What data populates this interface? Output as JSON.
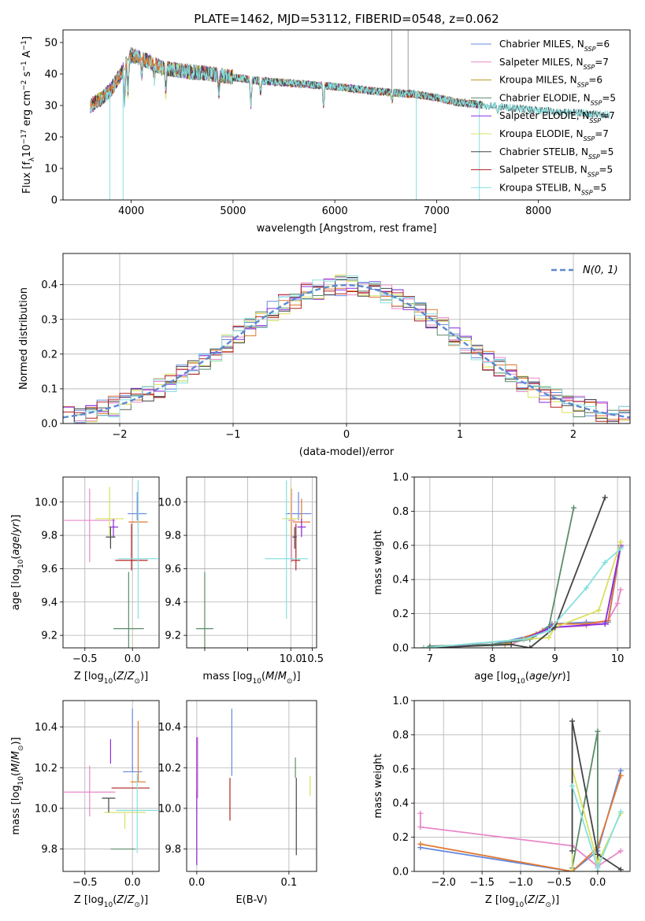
{
  "figure": {
    "title": "PLATE=1462, MJD=53112, FIBERID=0548, z=0.062"
  },
  "palette": [
    "#6688dd",
    "#e888c8",
    "#b89a20",
    "#5b8c6a",
    "#8a2be2",
    "#d8e060",
    "#444444",
    "#b22222",
    "#88e0e0",
    "#e07830"
  ],
  "chart_data": [
    {
      "type": "line",
      "title": "PLATE=1462, MJD=53112, FIBERID=0548, z=0.062",
      "xlabel": "wavelength [Angstrom, rest frame]",
      "ylabel": "Flux [f_λ10^-17 erg cm^-2 s^-1 A^-1]",
      "xlim": [
        3330,
        8900
      ],
      "ylim": [
        0,
        54
      ],
      "xticks": [
        4000,
        5000,
        6000,
        7000,
        8000
      ],
      "yticks": [
        0,
        10,
        20,
        30,
        40,
        50
      ],
      "grid": false,
      "legend_position": "top-right",
      "continuum": {
        "x": [
          3600,
          3700,
          3800,
          3900,
          4000,
          4100,
          4300,
          4500,
          4800,
          5200,
          5600,
          6000,
          6400,
          6800,
          7000,
          7200,
          7500,
          7800,
          8200,
          8700
        ],
        "y": [
          30,
          32,
          35,
          40,
          46,
          45,
          42,
          41,
          40,
          38,
          37,
          36,
          34.5,
          33.5,
          32.5,
          31,
          30,
          29,
          28,
          27
        ]
      },
      "absorption_lines": [
        {
          "x": 3934,
          "depth": 12
        },
        {
          "x": 3968,
          "depth": 10
        },
        {
          "x": 4102,
          "depth": 6
        },
        {
          "x": 4227,
          "depth": 5
        },
        {
          "x": 4340,
          "depth": 8
        },
        {
          "x": 4861,
          "depth": 6
        },
        {
          "x": 5175,
          "depth": 9
        },
        {
          "x": 5270,
          "depth": 4
        },
        {
          "x": 5890,
          "depth": 7
        },
        {
          "x": 6563,
          "depth": 3
        },
        {
          "x": 7600,
          "depth": 3
        }
      ],
      "spikes": [
        {
          "x": 3790,
          "to": 0
        },
        {
          "x": 3920,
          "to": 0
        },
        {
          "x": 6560,
          "to": 54
        },
        {
          "x": 6720,
          "to": 54
        },
        {
          "x": 6800,
          "to": 0
        },
        {
          "x": 7420,
          "to": 0
        }
      ],
      "series": [
        {
          "name": "Chabrier MILES, N",
          "sub": "SSP",
          "suffix": "=6",
          "color": "#6688dd"
        },
        {
          "name": "Salpeter MILES, N",
          "sub": "SSP",
          "suffix": "=7",
          "color": "#e888c8"
        },
        {
          "name": "Kroupa MILES, N",
          "sub": "SSP",
          "suffix": "=6",
          "color": "#b89a20"
        },
        {
          "name": "Chabrier ELODIE, N",
          "sub": "SSP",
          "suffix": "=5",
          "color": "#5b8c6a"
        },
        {
          "name": "Salpeter ELODIE, N",
          "sub": "SSP",
          "suffix": "=7",
          "color": "#8a2be2"
        },
        {
          "name": "Kroupa ELODIE, N",
          "sub": "SSP",
          "suffix": "=7",
          "color": "#d8e060"
        },
        {
          "name": "Chabrier STELIB, N",
          "sub": "SSP",
          "suffix": "=5",
          "color": "#444444"
        },
        {
          "name": "Salpeter STELIB, N",
          "sub": "SSP",
          "suffix": "=5",
          "color": "#b22222"
        },
        {
          "name": "Kroupa STELIB, N",
          "sub": "SSP",
          "suffix": "=5",
          "color": "#88e0e0"
        }
      ]
    },
    {
      "type": "histogram",
      "xlabel": "(data-model)/error",
      "ylabel": "Normed distribution",
      "xlim": [
        -2.5,
        2.5
      ],
      "ylim": [
        0,
        0.49
      ],
      "xticks": [
        -2,
        -1,
        0,
        1,
        2
      ],
      "yticks": [
        0.0,
        0.1,
        0.2,
        0.3,
        0.4
      ],
      "grid": true,
      "legend_position": "top-right",
      "legend": "N(0, 1)",
      "bin_width": 0.1,
      "n_series": 9
    },
    {
      "type": "errorbar",
      "xlabel": "Z [log10(Z/Z⊙)]",
      "ylabel": "age [log10(age/yr)]",
      "xlim": [
        -0.73,
        0.28
      ],
      "ylim": [
        9.125,
        10.15
      ],
      "xticks": [
        -0.5,
        0.0
      ],
      "yticks": [
        9.2,
        9.4,
        9.6,
        9.8,
        10.0
      ],
      "grid": true,
      "points": [
        {
          "x": 0.05,
          "xerr": 0.1,
          "y": 9.93,
          "yerr": [
            0.04,
            0.13
          ]
        },
        {
          "x": -0.45,
          "xerr": 0.27,
          "y": 9.89,
          "yerr": [
            0.25,
            0.19
          ]
        },
        {
          "x": 0.06,
          "xerr": 0.1,
          "y": 9.88,
          "yerr": [
            0.07,
            0.14
          ]
        },
        {
          "x": -0.04,
          "xerr": 0.16,
          "y": 9.24,
          "yerr": [
            0.14,
            0.34
          ]
        },
        {
          "x": -0.2,
          "xerr": 0.05,
          "y": 9.85,
          "yerr": [
            0.06,
            0.05
          ]
        },
        {
          "x": -0.24,
          "xerr": 0.15,
          "y": 9.9,
          "yerr": [
            0.1,
            0.19
          ]
        },
        {
          "x": -0.23,
          "xerr": 0.05,
          "y": 9.79,
          "yerr": [
            0.07,
            0.06
          ]
        },
        {
          "x": -0.01,
          "xerr": 0.17,
          "y": 9.65,
          "yerr": [
            0.06,
            0.22
          ]
        },
        {
          "x": 0.06,
          "xerr": 0.21,
          "y": 9.66,
          "yerr": [
            0.36,
            0.47
          ]
        }
      ]
    },
    {
      "type": "errorbar",
      "xlabel": "mass [log10(M/M⊙)]",
      "ylabel": "",
      "xlim": [
        7.58,
        10.6
      ],
      "ylim": [
        9.125,
        10.15
      ],
      "xticks": [
        8.0,
        9.0,
        10.0,
        10.5
      ],
      "xticklabels": [
        "",
        "",
        "10.0",
        "10.5"
      ],
      "yticks": [
        9.2,
        9.4,
        9.6,
        9.8,
        10.0
      ],
      "grid": true,
      "points": [
        {
          "x": 10.18,
          "xerr": 0.3,
          "y": 9.93,
          "yerr": [
            0.04,
            0.13
          ]
        },
        {
          "x": 10.02,
          "xerr": 0.08,
          "y": 9.89,
          "yerr": [
            0.25,
            0.19
          ]
        },
        {
          "x": 10.25,
          "xerr": 0.2,
          "y": 9.88,
          "yerr": [
            0.07,
            0.14
          ]
        },
        {
          "x": 8.0,
          "xerr": 0.2,
          "y": 9.24,
          "yerr": [
            0.14,
            0.34
          ]
        },
        {
          "x": 10.25,
          "xerr": 0.1,
          "y": 9.85,
          "yerr": [
            0.06,
            0.05
          ]
        },
        {
          "x": 10.0,
          "xerr": 0.2,
          "y": 9.9,
          "yerr": [
            0.1,
            0.19
          ]
        },
        {
          "x": 10.09,
          "xerr": 0.05,
          "y": 9.79,
          "yerr": [
            0.07,
            0.06
          ]
        },
        {
          "x": 10.12,
          "xerr": 0.1,
          "y": 9.65,
          "yerr": [
            0.06,
            0.22
          ]
        },
        {
          "x": 9.9,
          "xerr": 0.5,
          "y": 9.66,
          "yerr": [
            0.36,
            0.47
          ]
        }
      ]
    },
    {
      "type": "line",
      "xlabel": "age [log10(age/yr)]",
      "ylabel": "mass weight",
      "xlim": [
        6.75,
        10.2
      ],
      "ylim": [
        0,
        1.0
      ],
      "xticks": [
        7,
        8,
        9,
        10
      ],
      "yticks": [
        0.0,
        0.2,
        0.4,
        0.6,
        0.8,
        1.0
      ],
      "grid": true,
      "series": [
        {
          "color": "#6688dd",
          "x": [
            6.9,
            8.0,
            8.7,
            8.95,
            9.5,
            9.85,
            10.05
          ],
          "y": [
            0.0,
            0.02,
            0.08,
            0.14,
            0.15,
            0.15,
            0.59
          ]
        },
        {
          "color": "#e888c8",
          "x": [
            6.9,
            8.3,
            8.8,
            9.0,
            9.5,
            9.85,
            10.0,
            10.05
          ],
          "y": [
            0.0,
            0.02,
            0.1,
            0.12,
            0.13,
            0.16,
            0.26,
            0.34
          ]
        },
        {
          "color": "#e07830",
          "x": [
            6.9,
            8.2,
            8.8,
            9.0,
            9.5,
            9.85,
            10.05
          ],
          "y": [
            0.0,
            0.02,
            0.1,
            0.14,
            0.14,
            0.16,
            0.6
          ]
        },
        {
          "color": "#5b8c6a",
          "x": [
            7.0,
            8.0,
            8.6,
            8.9,
            9.3
          ],
          "y": [
            0.01,
            0.02,
            0.05,
            0.12,
            0.82
          ]
        },
        {
          "color": "#8a2be2",
          "x": [
            7.0,
            8.5,
            8.95,
            9.8,
            10.05
          ],
          "y": [
            0.0,
            0.05,
            0.12,
            0.14,
            0.6
          ]
        },
        {
          "color": "#d8e060",
          "x": [
            6.9,
            8.5,
            8.9,
            9.0,
            9.7,
            10.05
          ],
          "y": [
            0.0,
            0.05,
            0.06,
            0.12,
            0.22,
            0.62
          ]
        },
        {
          "color": "#444444",
          "x": [
            7.0,
            8.3,
            8.6,
            9.0,
            9.8
          ],
          "y": [
            0.0,
            0.02,
            0.0,
            0.12,
            0.88
          ]
        },
        {
          "color": "#88e0e0",
          "x": [
            6.9,
            8.5,
            8.9,
            9.5,
            9.8,
            10.05
          ],
          "y": [
            0.0,
            0.05,
            0.1,
            0.35,
            0.5,
            0.58
          ]
        }
      ]
    },
    {
      "type": "errorbar",
      "xlabel": "Z [log10(Z/Z⊙)]",
      "ylabel": "mass [log10(M/M⊙)]",
      "xlim": [
        -0.73,
        0.28
      ],
      "ylim": [
        9.69,
        10.53
      ],
      "xticks": [
        -0.5,
        0.0
      ],
      "yticks": [
        9.8,
        10.0,
        10.2,
        10.4
      ],
      "grid": true,
      "points": [
        {
          "x": 0.0,
          "xerr": 0.1,
          "y": 10.18,
          "yerr": [
            0.0,
            0.31
          ]
        },
        {
          "x": -0.45,
          "xerr": 0.27,
          "y": 10.08,
          "yerr": [
            0.12,
            0.13
          ]
        },
        {
          "x": 0.06,
          "xerr": 0.08,
          "y": 10.13,
          "yerr": [
            0.0,
            0.3
          ]
        },
        {
          "x": -0.1,
          "xerr": 0.13,
          "y": 9.8,
          "yerr": [
            0.0,
            0.0
          ]
        },
        {
          "x": -0.23,
          "xerr": 0.0,
          "y": 10.28,
          "yerr": [
            0.06,
            0.06
          ]
        },
        {
          "x": -0.08,
          "xerr": 0.22,
          "y": 9.98,
          "yerr": [
            0.08,
            0.0
          ]
        },
        {
          "x": -0.25,
          "xerr": 0.07,
          "y": 10.05,
          "yerr": [
            0.07,
            0.0
          ]
        },
        {
          "x": -0.02,
          "xerr": 0.2,
          "y": 10.1,
          "yerr": [
            0.0,
            0.0
          ]
        },
        {
          "x": 0.05,
          "xerr": 0.22,
          "y": 9.99,
          "yerr": [
            0.21,
            0.18
          ]
        }
      ]
    },
    {
      "type": "errorbar",
      "xlabel": "E(B-V)",
      "ylabel": "",
      "xlim": [
        -0.011,
        0.13
      ],
      "ylim": [
        9.69,
        10.53
      ],
      "xticks": [
        0.0,
        0.1
      ],
      "yticks": [
        9.8,
        10.0,
        10.2,
        10.4
      ],
      "grid": true,
      "points": [
        {
          "x": 0.038,
          "y": 10.32,
          "yerr": [
            0.16,
            0.17
          ]
        },
        {
          "x": 0.001,
          "y": 10.22,
          "yerr": [
            0.17,
            0.13
          ]
        },
        {
          "x": 0.0,
          "y": 9.91,
          "yerr": [
            0.18,
            0.18
          ]
        },
        {
          "x": 0.107,
          "y": 10.2,
          "yerr": [
            0.05,
            0.05
          ]
        },
        {
          "x": 0.0,
          "y": 10.1,
          "yerr": [
            0.38,
            0.25
          ]
        },
        {
          "x": 0.123,
          "y": 10.11,
          "yerr": [
            0.05,
            0.05
          ]
        },
        {
          "x": 0.108,
          "y": 9.9,
          "yerr": [
            0.13,
            0.25
          ]
        },
        {
          "x": 0.036,
          "y": 10.0,
          "yerr": [
            0.06,
            0.15
          ]
        }
      ]
    },
    {
      "type": "line",
      "xlabel": "Z [log10(Z/Z⊙)]",
      "ylabel": "mass weight",
      "xlim": [
        -2.38,
        0.42
      ],
      "ylim": [
        0,
        1.0
      ],
      "xticks": [
        -2.0,
        -1.5,
        -1.0,
        -0.5,
        0.0
      ],
      "yticks": [
        0.0,
        0.2,
        0.4,
        0.6,
        0.8,
        1.0
      ],
      "grid": true,
      "series": [
        {
          "color": "#6688dd",
          "x": [
            -2.3,
            -0.33,
            0.0,
            0.3
          ],
          "y": [
            0.14,
            0.0,
            0.12,
            0.59
          ]
        },
        {
          "color": "#e888c8",
          "x": [
            -2.3,
            -2.3,
            -0.33,
            0.0,
            0.3
          ],
          "y": [
            0.34,
            0.26,
            0.15,
            0.03,
            0.12
          ]
        },
        {
          "color": "#e07830",
          "x": [
            -2.3,
            -0.33,
            0.0,
            0.3
          ],
          "y": [
            0.16,
            0.0,
            0.14,
            0.56
          ]
        },
        {
          "color": "#5b8c6a",
          "x": [
            -0.33,
            0.0,
            0.0
          ],
          "y": [
            0.02,
            0.82,
            0.0
          ]
        },
        {
          "color": "#d8e060",
          "x": [
            -0.33,
            -0.33,
            0.0,
            0.3
          ],
          "y": [
            0.0,
            0.6,
            0.05,
            0.34
          ]
        },
        {
          "color": "#444444",
          "x": [
            -0.33,
            -0.33,
            0.0,
            0.3
          ],
          "y": [
            0.12,
            0.88,
            0.1,
            0.01
          ]
        },
        {
          "color": "#88e0e0",
          "x": [
            -0.33,
            0.0,
            0.3
          ],
          "y": [
            0.5,
            0.02,
            0.35
          ]
        }
      ]
    }
  ]
}
